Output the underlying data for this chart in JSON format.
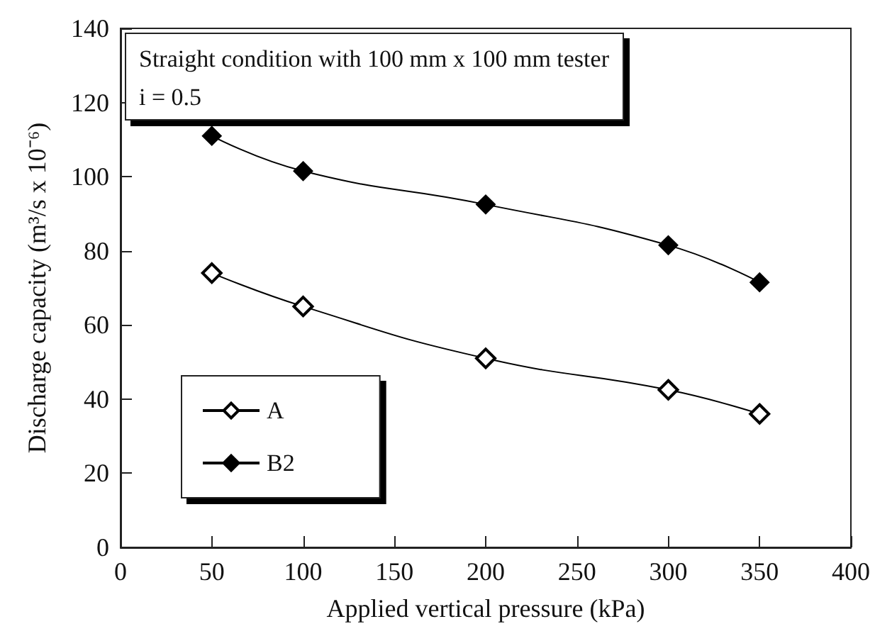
{
  "chart_data": {
    "type": "line",
    "xlabel": "Applied vertical pressure (kPa)",
    "ylabel": "Discharge capacity (m³/s x 10⁻⁶)",
    "annotations": [
      "Straight condition with 100 mm x 100 mm tester",
      "i = 0.5"
    ],
    "x": [
      50,
      100,
      200,
      300,
      350
    ],
    "series": [
      {
        "name": "A",
        "color": "#000000",
        "values": [
          74,
          65,
          51,
          42.5,
          36
        ]
      },
      {
        "name": "B2",
        "color": "#000000",
        "values": [
          111,
          101.5,
          92.5,
          81.5,
          71.5
        ]
      }
    ],
    "xlim": [
      0,
      400
    ],
    "xticks": [
      0,
      50,
      100,
      150,
      200,
      250,
      300,
      350,
      400
    ],
    "ylim": [
      0,
      140
    ],
    "yticks": [
      0,
      20,
      40,
      60,
      80,
      100,
      120,
      140
    ],
    "grid": false,
    "legend": "bottom left",
    "marker": "diamond",
    "line_style": "solid"
  }
}
